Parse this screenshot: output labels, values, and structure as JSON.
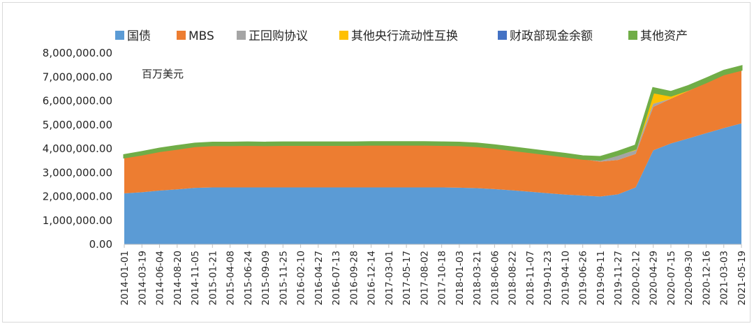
{
  "chart_data": {
    "type": "area",
    "stacked": true,
    "unit_label": "百万美元",
    "ylim": [
      0,
      8000000
    ],
    "y_ticks": [
      "0.00",
      "1,000,000.00",
      "2,000,000.00",
      "3,000,000.00",
      "4,000,000.00",
      "5,000,000.00",
      "6,000,000.00",
      "7,000,000.00",
      "8,000,000.00"
    ],
    "x_ticks": [
      "2014-01-01",
      "2014-03-19",
      "2014-06-04",
      "2014-08-20",
      "2014-11-05",
      "2015-01-21",
      "2015-04-08",
      "2015-06-24",
      "2015-09-09",
      "2015-11-25",
      "2016-02-10",
      "2016-04-27",
      "2016-07-13",
      "2016-09-28",
      "2016-12-14",
      "2017-03-01",
      "2017-05-17",
      "2017-08-02",
      "2017-10-18",
      "2018-01-03",
      "2018-03-21",
      "2018-06-06",
      "2018-08-22",
      "2018-11-07",
      "2019-01-23",
      "2019-04-10",
      "2019-06-26",
      "2019-09-11",
      "2019-11-27",
      "2020-02-12",
      "2020-04-29",
      "2020-07-15",
      "2020-09-30",
      "2020-12-16",
      "2021-03-03",
      "2021-05-19"
    ],
    "legend_position": "top",
    "grid": false,
    "series": [
      {
        "name": "国债",
        "color": "#5b9bd5",
        "values": [
          2130000,
          2180000,
          2250000,
          2300000,
          2360000,
          2380000,
          2380000,
          2380000,
          2380000,
          2380000,
          2380000,
          2380000,
          2380000,
          2380000,
          2380000,
          2380000,
          2380000,
          2380000,
          2380000,
          2370000,
          2350000,
          2310000,
          2260000,
          2200000,
          2140000,
          2080000,
          2040000,
          2000000,
          2090000,
          2380000,
          3930000,
          4220000,
          4430000,
          4650000,
          4860000,
          5060000
        ]
      },
      {
        "name": "MBS",
        "color": "#ed7d31",
        "values": [
          1490000,
          1560000,
          1630000,
          1680000,
          1730000,
          1750000,
          1750000,
          1760000,
          1750000,
          1760000,
          1760000,
          1760000,
          1760000,
          1760000,
          1770000,
          1770000,
          1770000,
          1770000,
          1760000,
          1760000,
          1740000,
          1710000,
          1670000,
          1640000,
          1610000,
          1580000,
          1520000,
          1460000,
          1440000,
          1400000,
          1820000,
          1870000,
          1990000,
          2100000,
          2230000,
          2220000
        ]
      },
      {
        "name": "正回购协议",
        "color": "#a5a5a5",
        "values": [
          0,
          0,
          0,
          0,
          0,
          0,
          0,
          0,
          0,
          0,
          0,
          0,
          0,
          0,
          0,
          0,
          0,
          0,
          0,
          0,
          0,
          0,
          0,
          0,
          0,
          0,
          0,
          60000,
          200000,
          150000,
          130000,
          0,
          0,
          0,
          0,
          0
        ]
      },
      {
        "name": "其他央行流动性互换",
        "color": "#ffc000",
        "values": [
          0,
          0,
          0,
          0,
          0,
          0,
          0,
          0,
          0,
          0,
          0,
          0,
          0,
          0,
          0,
          0,
          0,
          0,
          0,
          0,
          0,
          0,
          0,
          0,
          0,
          0,
          0,
          0,
          0,
          50000,
          460000,
          110000,
          30000,
          10000,
          5000,
          2000
        ]
      },
      {
        "name": "财政部现金余额",
        "color": "#4472c4",
        "values": [
          20000,
          20000,
          20000,
          20000,
          20000,
          20000,
          20000,
          20000,
          20000,
          20000,
          20000,
          20000,
          20000,
          20000,
          20000,
          20000,
          20000,
          20000,
          20000,
          20000,
          20000,
          20000,
          20000,
          20000,
          20000,
          20000,
          20000,
          20000,
          20000,
          20000,
          20000,
          20000,
          20000,
          20000,
          20000,
          20000
        ]
      },
      {
        "name": "其他资产",
        "color": "#70ad47",
        "values": [
          90000,
          100000,
          100000,
          110000,
          100000,
          100000,
          100000,
          100000,
          100000,
          100000,
          100000,
          100000,
          100000,
          100000,
          100000,
          100000,
          100000,
          100000,
          100000,
          100000,
          100000,
          100000,
          100000,
          100000,
          100000,
          100000,
          100000,
          110000,
          120000,
          130000,
          170000,
          150000,
          150000,
          150000,
          140000,
          140000
        ]
      }
    ]
  }
}
